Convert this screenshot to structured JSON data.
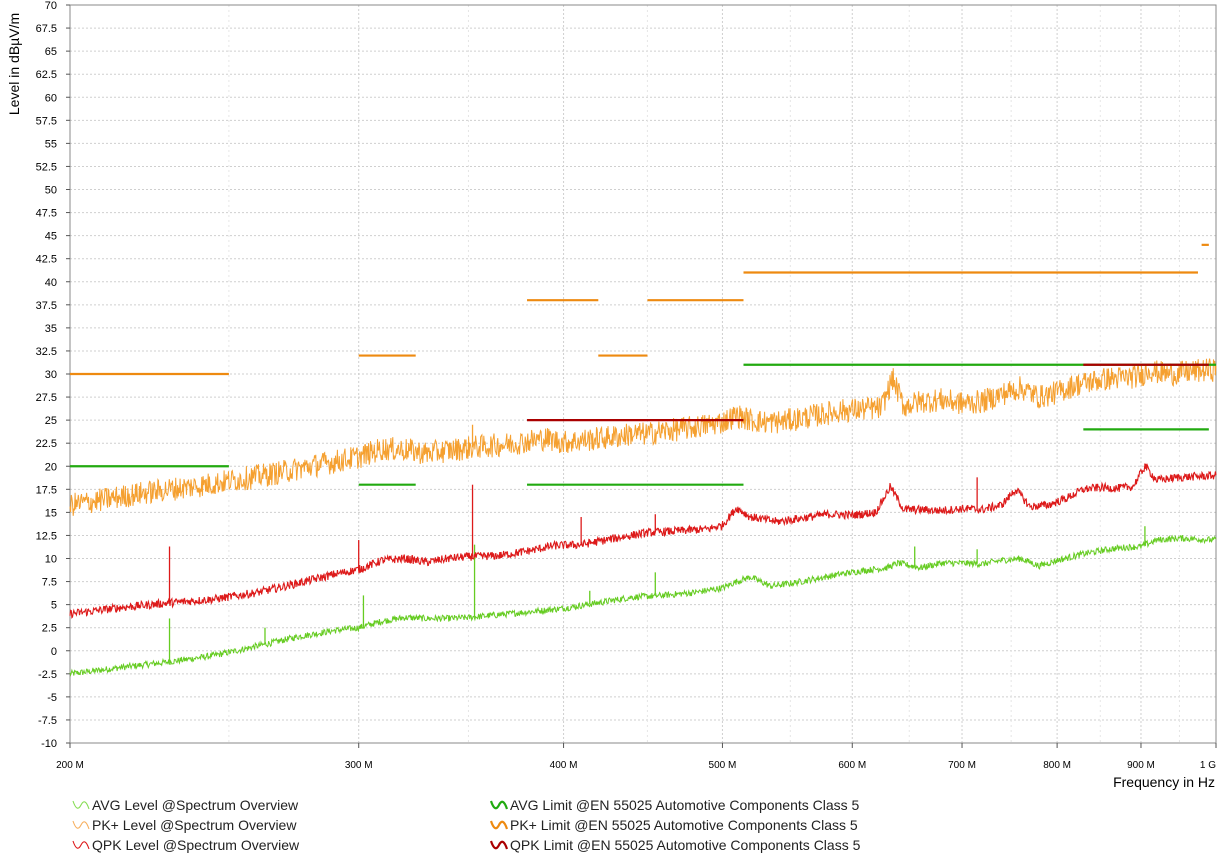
{
  "chart_data": {
    "type": "line",
    "title": "",
    "xlabel": "Frequency in Hz",
    "ylabel": "Level in dBµV/m",
    "xscale": "log",
    "xlim": [
      200000000,
      1000000000
    ],
    "ylim": [
      -10,
      70
    ],
    "grid": true,
    "yticks": [
      -10,
      -7.5,
      -5,
      -2.5,
      0,
      2.5,
      5,
      7.5,
      10,
      12.5,
      15,
      17.5,
      20,
      22.5,
      25,
      27.5,
      30,
      32.5,
      35,
      37.5,
      40,
      42.5,
      45,
      47.5,
      50,
      52.5,
      55,
      57.5,
      60,
      62.5,
      65,
      67.5,
      70
    ],
    "ytick_labels": [
      "-10",
      "-7.5",
      "-5",
      "-2.5",
      "0",
      "2.5",
      "5",
      "7.5",
      "10",
      "12.5",
      "15",
      "17.5",
      "20",
      "22.5",
      "25",
      "27.5",
      "30",
      "32.5",
      "35",
      "37.5",
      "40",
      "42.5",
      "45",
      "47.5",
      "50",
      "52.5",
      "55",
      "57.5",
      "60",
      "62.5",
      "65",
      "67.5",
      "70"
    ],
    "xticks": [
      {
        "value": 200,
        "label": "200 M"
      },
      {
        "value": 300,
        "label": "300 M"
      },
      {
        "value": 400,
        "label": "400 M"
      },
      {
        "value": 500,
        "label": "500 M"
      },
      {
        "value": 600,
        "label": "600 M"
      },
      {
        "value": 700,
        "label": "700 M"
      },
      {
        "value": 800,
        "label": "800 M"
      },
      {
        "value": 900,
        "label": "900 M"
      },
      {
        "value": 1000,
        "label": "1 G"
      }
    ],
    "x_unit": "MHz",
    "series": [
      {
        "name": "AVG Level @Spectrum Overview",
        "kind": "measurement",
        "color": "#66cc22",
        "points": [
          [
            200,
            -2.5
          ],
          [
            215,
            -1.8
          ],
          [
            230,
            -1.2
          ],
          [
            245,
            -0.5
          ],
          [
            260,
            0.5
          ],
          [
            275,
            1.5
          ],
          [
            290,
            2.2
          ],
          [
            300,
            2.5
          ],
          [
            310,
            3.2
          ],
          [
            320,
            3.6
          ],
          [
            330,
            3.5
          ],
          [
            340,
            3.5
          ],
          [
            350,
            3.6
          ],
          [
            360,
            3.8
          ],
          [
            380,
            4.2
          ],
          [
            400,
            4.6
          ],
          [
            420,
            5.2
          ],
          [
            440,
            5.8
          ],
          [
            460,
            6.0
          ],
          [
            480,
            6.3
          ],
          [
            500,
            6.8
          ],
          [
            510,
            7.5
          ],
          [
            520,
            8.0
          ],
          [
            535,
            7.0
          ],
          [
            550,
            7.3
          ],
          [
            570,
            7.8
          ],
          [
            590,
            8.3
          ],
          [
            610,
            8.7
          ],
          [
            630,
            9.0
          ],
          [
            640,
            9.5
          ],
          [
            660,
            9.0
          ],
          [
            680,
            9.5
          ],
          [
            700,
            9.5
          ],
          [
            720,
            9.4
          ],
          [
            740,
            9.8
          ],
          [
            760,
            10.0
          ],
          [
            780,
            9.2
          ],
          [
            800,
            9.8
          ],
          [
            830,
            10.5
          ],
          [
            860,
            11.0
          ],
          [
            880,
            11.2
          ],
          [
            900,
            11.3
          ],
          [
            920,
            12.0
          ],
          [
            950,
            12.2
          ],
          [
            1000,
            12.0
          ]
        ],
        "spikes": [
          [
            230,
            3.5
          ],
          [
            263,
            2.5
          ],
          [
            302,
            6.0
          ],
          [
            353,
            11.5
          ],
          [
            415,
            6.5
          ],
          [
            455,
            8.5
          ],
          [
            715,
            11.0
          ],
          [
            905,
            13.5
          ],
          [
            655,
            11.3
          ]
        ]
      },
      {
        "name": "PK+ Level @Spectrum Overview",
        "kind": "measurement",
        "color": "#f5a030",
        "points": [
          [
            200,
            15.8
          ],
          [
            210,
            16.4
          ],
          [
            220,
            17.0
          ],
          [
            230,
            17.5
          ],
          [
            240,
            17.9
          ],
          [
            250,
            18.4
          ],
          [
            260,
            18.9
          ],
          [
            270,
            19.4
          ],
          [
            280,
            20.0
          ],
          [
            290,
            20.5
          ],
          [
            300,
            21.0
          ],
          [
            310,
            21.9
          ],
          [
            320,
            21.8
          ],
          [
            330,
            21.4
          ],
          [
            340,
            21.7
          ],
          [
            350,
            22.0
          ],
          [
            360,
            22.2
          ],
          [
            370,
            22.4
          ],
          [
            380,
            22.7
          ],
          [
            390,
            23.0
          ],
          [
            400,
            22.6
          ],
          [
            410,
            22.8
          ],
          [
            420,
            23.0
          ],
          [
            430,
            23.2
          ],
          [
            440,
            23.5
          ],
          [
            450,
            23.5
          ],
          [
            460,
            23.8
          ],
          [
            470,
            24.0
          ],
          [
            480,
            24.2
          ],
          [
            490,
            24.5
          ],
          [
            500,
            24.8
          ],
          [
            510,
            25.5
          ],
          [
            520,
            25.0
          ],
          [
            530,
            24.8
          ],
          [
            540,
            24.8
          ],
          [
            550,
            25.0
          ],
          [
            570,
            25.5
          ],
          [
            590,
            26.0
          ],
          [
            610,
            26.2
          ],
          [
            625,
            26.3
          ],
          [
            635,
            29.5
          ],
          [
            645,
            26.5
          ],
          [
            660,
            27.0
          ],
          [
            680,
            27.2
          ],
          [
            700,
            26.8
          ],
          [
            720,
            27.0
          ],
          [
            740,
            27.8
          ],
          [
            760,
            28.5
          ],
          [
            780,
            27.5
          ],
          [
            800,
            28.0
          ],
          [
            820,
            28.8
          ],
          [
            840,
            29.2
          ],
          [
            860,
            29.5
          ],
          [
            880,
            29.6
          ],
          [
            900,
            29.8
          ],
          [
            910,
            30.5
          ],
          [
            920,
            30.2
          ],
          [
            940,
            30.0
          ],
          [
            960,
            30.2
          ],
          [
            1000,
            30.5
          ]
        ],
        "spikes": [
          [
            352,
            24.5
          ]
        ]
      },
      {
        "name": "QPK Level @Spectrum Overview",
        "kind": "measurement",
        "color": "#dd1a1a",
        "points": [
          [
            200,
            4.0
          ],
          [
            215,
            4.7
          ],
          [
            230,
            5.2
          ],
          [
            245,
            5.6
          ],
          [
            260,
            6.3
          ],
          [
            275,
            7.3
          ],
          [
            290,
            8.3
          ],
          [
            300,
            8.8
          ],
          [
            310,
            9.8
          ],
          [
            320,
            10.0
          ],
          [
            330,
            9.6
          ],
          [
            340,
            10.0
          ],
          [
            350,
            10.2
          ],
          [
            365,
            10.3
          ],
          [
            380,
            10.8
          ],
          [
            395,
            11.4
          ],
          [
            410,
            11.5
          ],
          [
            430,
            12.2
          ],
          [
            450,
            12.8
          ],
          [
            470,
            13.0
          ],
          [
            490,
            13.2
          ],
          [
            500,
            13.6
          ],
          [
            510,
            15.5
          ],
          [
            520,
            14.5
          ],
          [
            540,
            14.0
          ],
          [
            560,
            14.4
          ],
          [
            580,
            14.8
          ],
          [
            600,
            14.7
          ],
          [
            620,
            15.0
          ],
          [
            633,
            17.8
          ],
          [
            645,
            15.3
          ],
          [
            660,
            15.3
          ],
          [
            680,
            15.2
          ],
          [
            700,
            15.4
          ],
          [
            720,
            15.3
          ],
          [
            740,
            15.8
          ],
          [
            755,
            17.5
          ],
          [
            770,
            15.6
          ],
          [
            790,
            15.8
          ],
          [
            810,
            16.5
          ],
          [
            830,
            17.5
          ],
          [
            850,
            17.7
          ],
          [
            870,
            17.6
          ],
          [
            890,
            17.8
          ],
          [
            905,
            20.0
          ],
          [
            920,
            18.5
          ],
          [
            950,
            18.8
          ],
          [
            1000,
            19.0
          ]
        ],
        "spikes": [
          [
            230,
            11.3
          ],
          [
            352,
            18.0
          ],
          [
            300,
            12.0
          ],
          [
            410,
            14.5
          ],
          [
            455,
            14.8
          ],
          [
            715,
            18.8
          ],
          [
            905,
            20.3
          ]
        ]
      },
      {
        "name": "AVG Limit @EN 55025 Automotive Components Class 5",
        "kind": "limit",
        "color": "#22aa10",
        "segments": [
          [
            200,
            250,
            20
          ],
          [
            300,
            325,
            18
          ],
          [
            380,
            515,
            18
          ],
          [
            515,
            1000,
            31
          ],
          [
            830,
            990,
            24
          ]
        ]
      },
      {
        "name": "PK+ Limit @EN 55025 Automotive Components Class 5",
        "kind": "limit",
        "color": "#ee8a10",
        "segments": [
          [
            200,
            250,
            30
          ],
          [
            300,
            325,
            32
          ],
          [
            380,
            420,
            38
          ],
          [
            420,
            450,
            32
          ],
          [
            450,
            515,
            38
          ],
          [
            515,
            975,
            41
          ],
          [
            980,
            990,
            44
          ]
        ]
      },
      {
        "name": "QPK Limit @EN 55025 Automotive Components Class 5",
        "kind": "limit",
        "color": "#aa0000",
        "segments": [
          [
            380,
            515,
            25
          ],
          [
            830,
            990,
            31
          ]
        ]
      }
    ],
    "legend": [
      {
        "label": "AVG Level @Spectrum Overview",
        "color": "#88dd55",
        "style": "thin"
      },
      {
        "label": "PK+ Level @Spectrum Overview",
        "color": "#f7b060",
        "style": "thin"
      },
      {
        "label": "QPK Level @Spectrum Overview",
        "color": "#dd1a1a",
        "style": "thin"
      },
      {
        "label": "AVG Limit @EN 55025 Automotive Components Class 5",
        "color": "#22aa10",
        "style": "thick"
      },
      {
        "label": "PK+ Limit @EN 55025 Automotive Components Class 5",
        "color": "#ee8a10",
        "style": "thick"
      },
      {
        "label": "QPK Limit @EN 55025 Automotive Components Class 5",
        "color": "#aa0000",
        "style": "thick"
      }
    ],
    "legend_position": "bottom"
  }
}
